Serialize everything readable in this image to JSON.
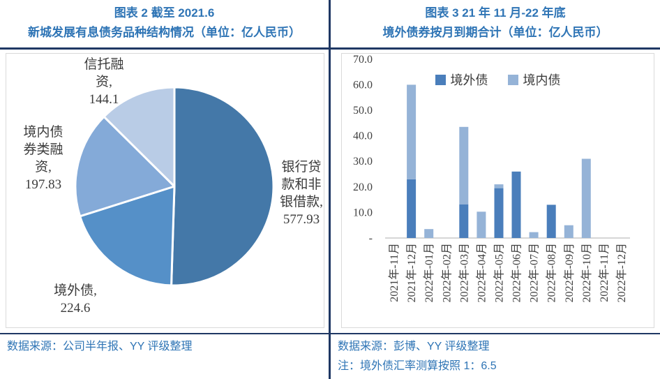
{
  "panels": {
    "left": {
      "title_line1": "图表 2 截至 2021.6",
      "title_line2": "新城发展有息债务品种结构情况（单位：亿人民币）",
      "source": "数据来源：公司半年报、YY 评级整理"
    },
    "right": {
      "title_line1": "图表 3 21 年 11 月-22 年底",
      "title_line2": "境外债券按月到期合计（单位：亿人民币）",
      "source": "数据来源：彭博、YY 评级整理",
      "note": "注：境外债汇率测算按照 1：6.5"
    }
  },
  "colors": {
    "title_blue": "#2E74B5",
    "border_navy": "#1F3864",
    "chart_box_border": "#D9D9D9",
    "axis_gray": "#C9C9C9"
  },
  "chart_data": [
    {
      "type": "pie",
      "title": "新城发展有息债务品种结构情况",
      "unit": "亿人民币",
      "start_angle": "top",
      "direction": "clockwise",
      "slices": [
        {
          "label": "银行贷款和非银借款",
          "value": 577.93,
          "color": "#4478A8",
          "display": [
            "银行贷",
            "款和非",
            "银借款,",
            "577.93"
          ]
        },
        {
          "label": "境外债",
          "value": 224.6,
          "color": "#5590C8",
          "display": [
            "境外债,",
            "224.6"
          ]
        },
        {
          "label": "境内债券类融资",
          "value": 197.83,
          "color": "#84AAD8",
          "display": [
            "境内债",
            "券类融",
            "资,",
            "197.83"
          ]
        },
        {
          "label": "信托融资",
          "value": 144.1,
          "color": "#B9CCE6",
          "display": [
            "信托融",
            "资,",
            "144.1"
          ]
        }
      ]
    },
    {
      "type": "bar",
      "subtype": "stacked",
      "title": "境外债券按月到期合计",
      "unit": "亿人民币",
      "grid": false,
      "legend_position": "top-center",
      "ylim": [
        0,
        70
      ],
      "yticks": [
        "70.0",
        "60.0",
        "50.0",
        "40.0",
        "30.0",
        "20.0",
        "10.0",
        "-"
      ],
      "categories": [
        "2021年-11月",
        "2021年-12月",
        "2022年-01月",
        "2022年-02月",
        "2022年-03月",
        "2022年-04月",
        "2022年-05月",
        "2022年-06月",
        "2022年-07月",
        "2022年-08月",
        "2022年-09月",
        "2022年-10月",
        "2022年-11月",
        "2022年-12月"
      ],
      "series": [
        {
          "name": "境外债",
          "color": "#4A7EBB",
          "values": [
            0,
            23.0,
            0,
            0,
            13.2,
            0,
            19.5,
            26.0,
            0,
            13.0,
            0,
            0,
            0,
            0
          ]
        },
        {
          "name": "境内债",
          "color": "#95B3D7",
          "values": [
            0,
            37.0,
            3.5,
            0,
            30.3,
            10.3,
            1.5,
            0,
            2.3,
            0,
            5.0,
            31.0,
            0,
            0
          ]
        }
      ]
    }
  ]
}
